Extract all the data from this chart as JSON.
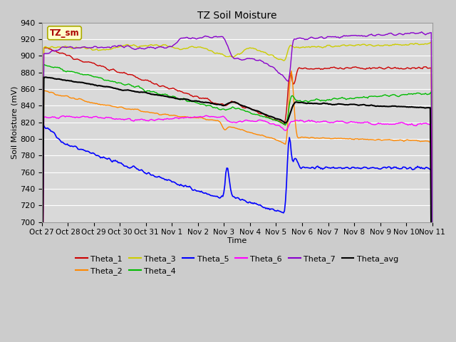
{
  "title": "TZ Soil Moisture",
  "xlabel": "Time",
  "ylabel": "Soil Moisture (mV)",
  "ylim": [
    700,
    940
  ],
  "yticks": [
    700,
    720,
    740,
    760,
    780,
    800,
    820,
    840,
    860,
    880,
    900,
    920,
    940
  ],
  "background_color": "#cccccc",
  "plot_bg_color": "#d9d9d9",
  "grid_color": "#ffffff",
  "label_box_color": "#ffffcc",
  "label_box_text": "TZ_sm",
  "line_colors": {
    "Theta_1": "#cc0000",
    "Theta_2": "#ff8800",
    "Theta_3": "#cccc00",
    "Theta_4": "#00bb00",
    "Theta_5": "#0000ff",
    "Theta_6": "#ff00ff",
    "Theta_7": "#8800cc",
    "Theta_avg": "#000000"
  },
  "x_tick_labels": [
    "Oct 27",
    "Oct 28",
    "Oct 29",
    "Oct 30",
    "Oct 31",
    "Nov 1",
    "Nov 2",
    "Nov 3",
    "Nov 4",
    "Nov 5",
    "Nov 6",
    "Nov 7",
    "Nov 8",
    "Nov 9",
    "Nov 10",
    "Nov 11"
  ],
  "num_points": 400
}
